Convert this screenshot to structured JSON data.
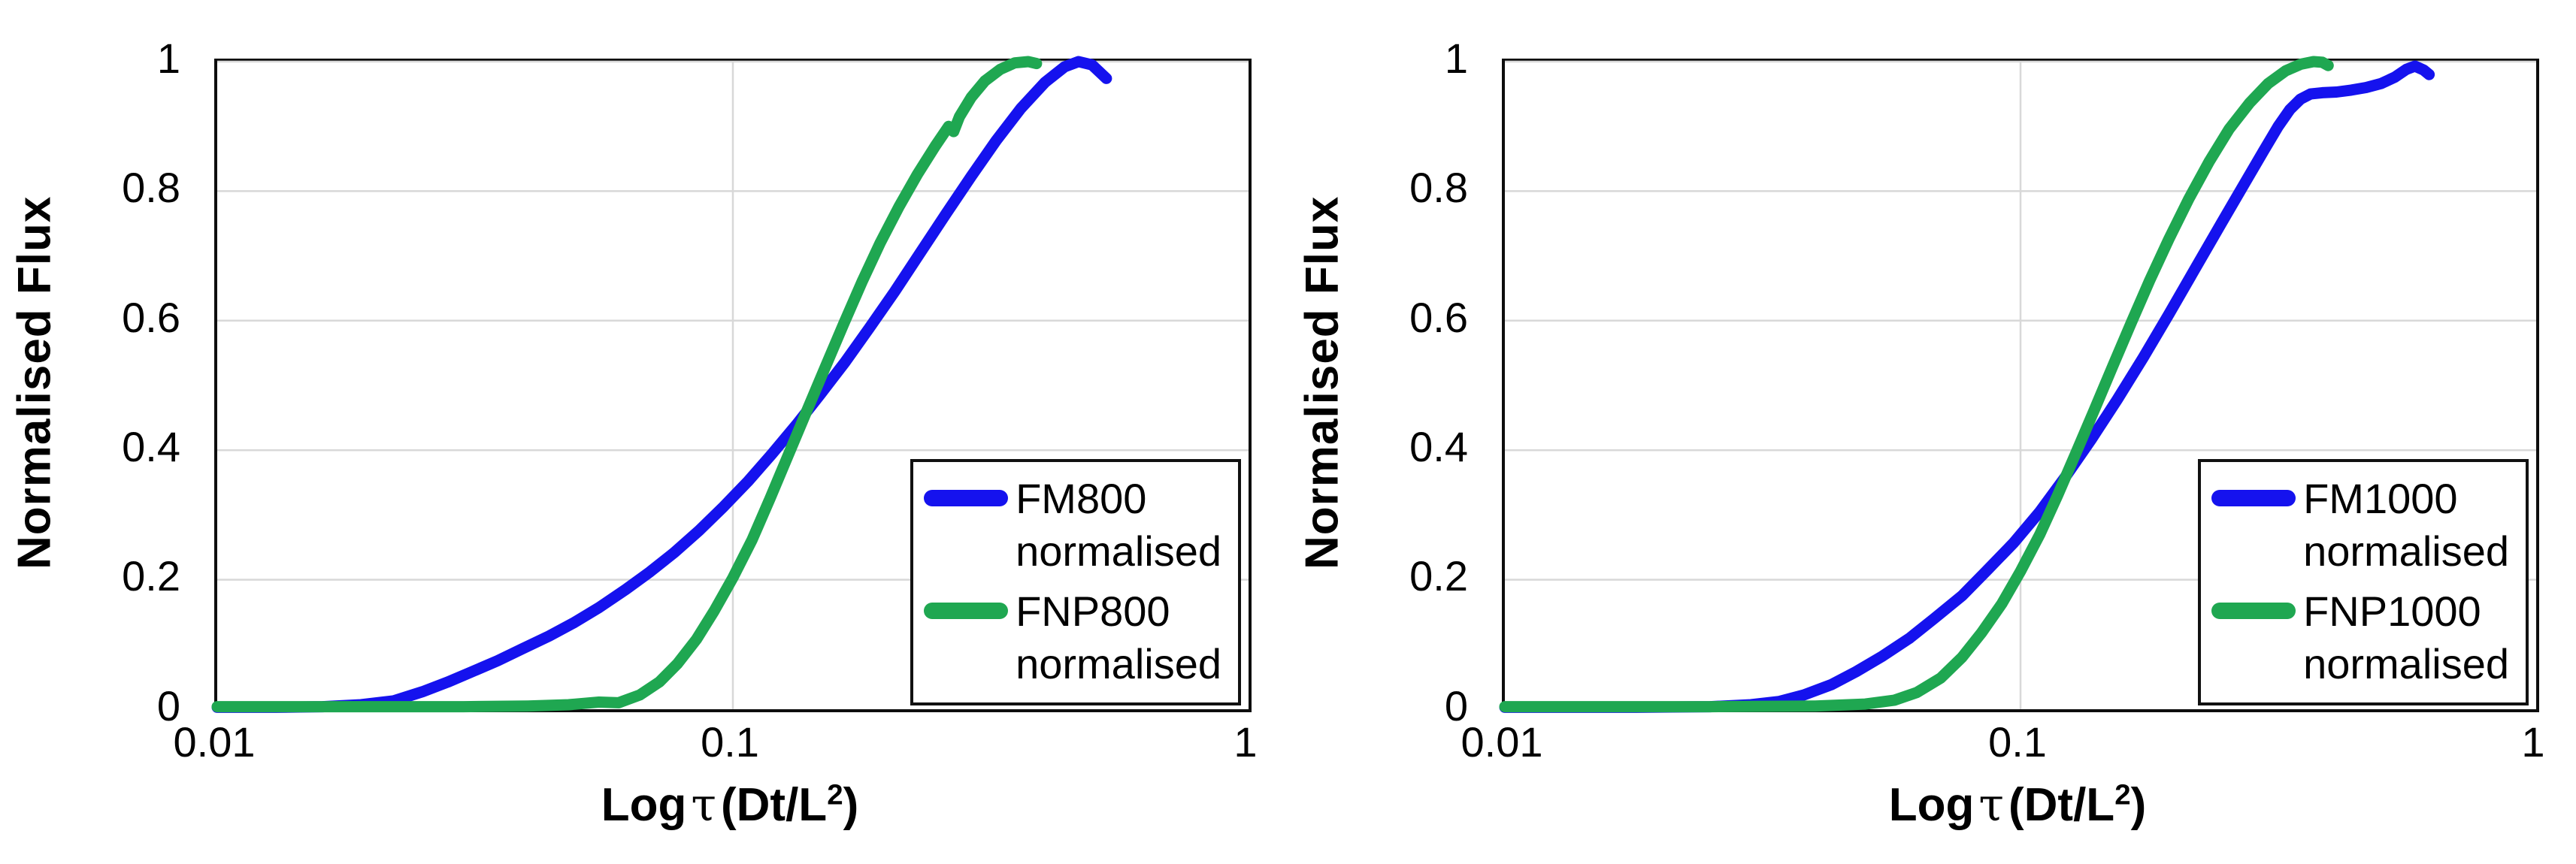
{
  "page": {
    "background": "#ffffff"
  },
  "chart_data": [
    {
      "type": "line",
      "title": "",
      "xlabel": "Log τ (Dt/L²)",
      "ylabel": "Normalised Flux",
      "xlabel_parts": {
        "pre": "Log",
        "tau": "τ",
        "open": "(Dt/L",
        "sup": "2",
        "close": ")"
      },
      "xscale": "log",
      "xlim": [
        0.01,
        1
      ],
      "ylim": [
        0,
        1
      ],
      "x_ticks": [
        0.01,
        0.1,
        1
      ],
      "x_tick_labels": [
        "0.01",
        "0.1",
        "1"
      ],
      "y_ticks": [
        0,
        0.2,
        0.4,
        0.6,
        0.8,
        1
      ],
      "y_tick_labels": [
        "1",
        "0.8",
        "0.6",
        "0.4",
        "0.2",
        "0"
      ],
      "grid": true,
      "grid_color": "#d8d8d8",
      "axis_color": "#0d0d0d",
      "legend_position": "inside bottom-right",
      "series": [
        {
          "name": "FM800 normalised",
          "label_lines": [
            "FM800",
            "normalised"
          ],
          "color": "#1512EE",
          "points": [
            [
              0.01,
              0.003
            ],
            [
              0.013,
              0.003
            ],
            [
              0.016,
              0.004
            ],
            [
              0.019,
              0.007
            ],
            [
              0.022,
              0.013
            ],
            [
              0.025,
              0.027
            ],
            [
              0.028,
              0.042
            ],
            [
              0.031,
              0.057
            ],
            [
              0.035,
              0.075
            ],
            [
              0.039,
              0.093
            ],
            [
              0.044,
              0.113
            ],
            [
              0.049,
              0.133
            ],
            [
              0.055,
              0.157
            ],
            [
              0.062,
              0.185
            ],
            [
              0.069,
              0.212
            ],
            [
              0.077,
              0.242
            ],
            [
              0.086,
              0.276
            ],
            [
              0.096,
              0.313
            ],
            [
              0.107,
              0.352
            ],
            [
              0.119,
              0.394
            ],
            [
              0.133,
              0.44
            ],
            [
              0.148,
              0.487
            ],
            [
              0.165,
              0.536
            ],
            [
              0.184,
              0.589
            ],
            [
              0.206,
              0.645
            ],
            [
              0.231,
              0.705
            ],
            [
              0.259,
              0.765
            ],
            [
              0.29,
              0.823
            ],
            [
              0.324,
              0.878
            ],
            [
              0.362,
              0.928
            ],
            [
              0.403,
              0.968
            ],
            [
              0.44,
              0.992
            ],
            [
              0.468,
              1.0
            ],
            [
              0.497,
              0.995
            ],
            [
              0.53,
              0.974
            ]
          ]
        },
        {
          "name": "FNP800 normalised",
          "label_lines": [
            "FNP800",
            "normalised"
          ],
          "color": "#1FA751",
          "points": [
            [
              0.01,
              0.004
            ],
            [
              0.02,
              0.004
            ],
            [
              0.03,
              0.004
            ],
            [
              0.04,
              0.005
            ],
            [
              0.048,
              0.007
            ],
            [
              0.055,
              0.011
            ],
            [
              0.06,
              0.01
            ],
            [
              0.066,
              0.022
            ],
            [
              0.072,
              0.042
            ],
            [
              0.078,
              0.07
            ],
            [
              0.085,
              0.108
            ],
            [
              0.092,
              0.152
            ],
            [
              0.1,
              0.203
            ],
            [
              0.109,
              0.262
            ],
            [
              0.118,
              0.325
            ],
            [
              0.128,
              0.392
            ],
            [
              0.139,
              0.46
            ],
            [
              0.151,
              0.528
            ],
            [
              0.164,
              0.595
            ],
            [
              0.178,
              0.66
            ],
            [
              0.193,
              0.72
            ],
            [
              0.21,
              0.776
            ],
            [
              0.228,
              0.826
            ],
            [
              0.247,
              0.87
            ],
            [
              0.262,
              0.9
            ],
            [
              0.268,
              0.892
            ],
            [
              0.275,
              0.915
            ],
            [
              0.29,
              0.945
            ],
            [
              0.308,
              0.97
            ],
            [
              0.33,
              0.988
            ],
            [
              0.352,
              0.998
            ],
            [
              0.374,
              1.0
            ],
            [
              0.388,
              0.997
            ]
          ]
        }
      ]
    },
    {
      "type": "line",
      "title": "",
      "xlabel": "Log τ (Dt/L²)",
      "ylabel": "Normalised Flux",
      "xlabel_parts": {
        "pre": "Log",
        "tau": "τ",
        "open": "(Dt/L",
        "sup": "2",
        "close": ")"
      },
      "xscale": "log",
      "xlim": [
        0.01,
        1
      ],
      "ylim": [
        0,
        1
      ],
      "x_ticks": [
        0.01,
        0.1,
        1
      ],
      "x_tick_labels": [
        "0.01",
        "0.1",
        "1"
      ],
      "y_ticks": [
        0,
        0.2,
        0.4,
        0.6,
        0.8,
        1
      ],
      "y_tick_labels": [
        "1",
        "0.8",
        "0.6",
        "0.4",
        "0.2",
        "0"
      ],
      "grid": true,
      "grid_color": "#d8d8d8",
      "axis_color": "#0d0d0d",
      "legend_position": "inside bottom-right",
      "series": [
        {
          "name": "FM1000 normalised",
          "label_lines": [
            "FM1000",
            "normalised"
          ],
          "color": "#1512EE",
          "points": [
            [
              0.01,
              0.003
            ],
            [
              0.018,
              0.003
            ],
            [
              0.025,
              0.004
            ],
            [
              0.03,
              0.007
            ],
            [
              0.034,
              0.012
            ],
            [
              0.038,
              0.022
            ],
            [
              0.043,
              0.038
            ],
            [
              0.048,
              0.058
            ],
            [
              0.054,
              0.082
            ],
            [
              0.061,
              0.11
            ],
            [
              0.068,
              0.14
            ],
            [
              0.077,
              0.175
            ],
            [
              0.086,
              0.214
            ],
            [
              0.097,
              0.257
            ],
            [
              0.109,
              0.305
            ],
            [
              0.122,
              0.358
            ],
            [
              0.137,
              0.416
            ],
            [
              0.154,
              0.478
            ],
            [
              0.173,
              0.543
            ],
            [
              0.194,
              0.61
            ],
            [
              0.218,
              0.68
            ],
            [
              0.245,
              0.75
            ],
            [
              0.272,
              0.812
            ],
            [
              0.296,
              0.862
            ],
            [
              0.316,
              0.9
            ],
            [
              0.333,
              0.926
            ],
            [
              0.349,
              0.942
            ],
            [
              0.365,
              0.95
            ],
            [
              0.385,
              0.952
            ],
            [
              0.41,
              0.953
            ],
            [
              0.438,
              0.956
            ],
            [
              0.468,
              0.96
            ],
            [
              0.5,
              0.966
            ],
            [
              0.532,
              0.976
            ],
            [
              0.56,
              0.988
            ],
            [
              0.582,
              0.993
            ],
            [
              0.605,
              0.987
            ],
            [
              0.62,
              0.98
            ]
          ]
        },
        {
          "name": "FNP1000 normalised",
          "label_lines": [
            "FNP1000",
            "normalised"
          ],
          "color": "#1FA751",
          "points": [
            [
              0.01,
              0.004
            ],
            [
              0.025,
              0.004
            ],
            [
              0.04,
              0.005
            ],
            [
              0.05,
              0.008
            ],
            [
              0.057,
              0.014
            ],
            [
              0.063,
              0.026
            ],
            [
              0.07,
              0.048
            ],
            [
              0.077,
              0.08
            ],
            [
              0.084,
              0.118
            ],
            [
              0.092,
              0.163
            ],
            [
              0.1,
              0.213
            ],
            [
              0.109,
              0.27
            ],
            [
              0.118,
              0.33
            ],
            [
              0.128,
              0.395
            ],
            [
              0.139,
              0.462
            ],
            [
              0.151,
              0.53
            ],
            [
              0.164,
              0.597
            ],
            [
              0.178,
              0.662
            ],
            [
              0.194,
              0.726
            ],
            [
              0.212,
              0.788
            ],
            [
              0.232,
              0.845
            ],
            [
              0.254,
              0.896
            ],
            [
              0.278,
              0.936
            ],
            [
              0.302,
              0.966
            ],
            [
              0.327,
              0.986
            ],
            [
              0.35,
              0.996
            ],
            [
              0.37,
              1.0
            ],
            [
              0.385,
              0.999
            ],
            [
              0.395,
              0.994
            ]
          ]
        }
      ]
    }
  ]
}
